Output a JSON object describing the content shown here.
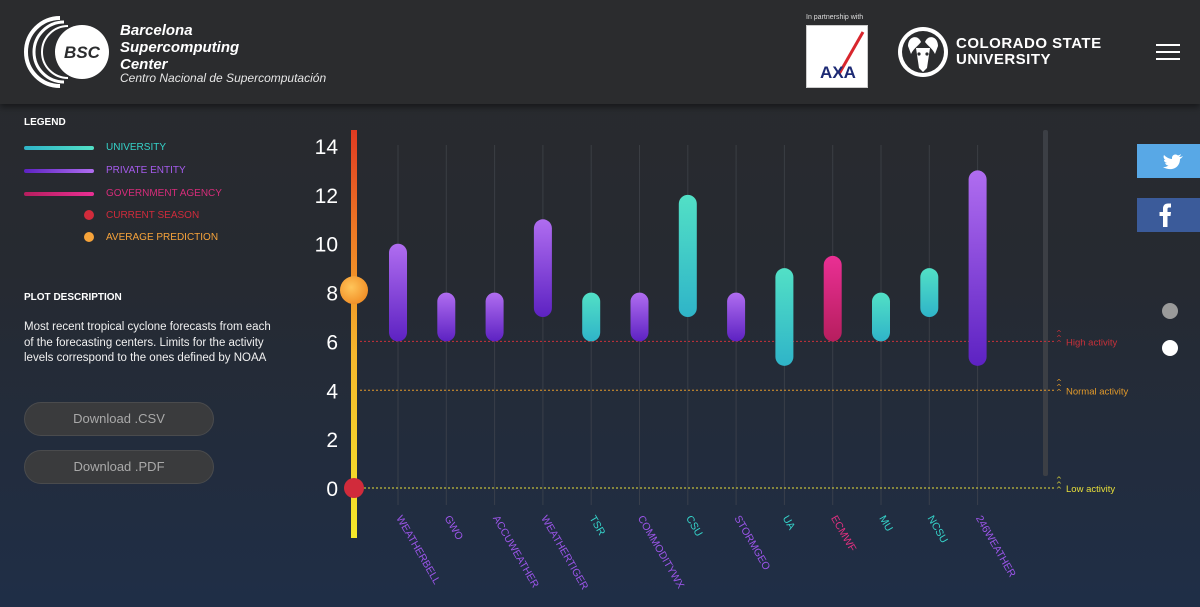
{
  "header": {
    "bsc_name_lines": [
      "Barcelona",
      "Supercomputing",
      "Center"
    ],
    "bsc_subtitle": "Centro Nacional de Supercomputación",
    "bsc_logo_text": "BSC",
    "partnership_label": "In partnership with",
    "partner_logo_text": "AXA",
    "csu_lines": [
      "COLORADO STATE",
      "UNIVERSITY"
    ]
  },
  "legend": {
    "title": "LEGEND",
    "items": [
      {
        "label": "UNIVERSITY",
        "kind": "line",
        "color": "#35d2c9",
        "gradient": [
          "#2fb4c8",
          "#52e0c6"
        ]
      },
      {
        "label": "PRIVATE ENTITY",
        "kind": "line",
        "color": "#a55bec",
        "gradient": [
          "#5d22c2",
          "#b06df0"
        ]
      },
      {
        "label": "GOVERNMENT AGENCY",
        "kind": "line",
        "color": "#d62c7a",
        "gradient": [
          "#b61e5e",
          "#ea2f94"
        ]
      },
      {
        "label": "CURRENT SEASON",
        "kind": "dot",
        "color": "#d12b3b"
      },
      {
        "label": "AVERAGE PREDICTION",
        "kind": "dot",
        "color": "#f6a33a"
      }
    ]
  },
  "plot_description": {
    "title": "PLOT DESCRIPTION",
    "text": "Most recent tropical cyclone forecasts from each of the forecasting centers. Limits for the activity levels correspond to the ones defined by NOAA"
  },
  "buttons": {
    "download_csv": "Download .CSV",
    "download_pdf": "Download .PDF"
  },
  "chart_data": {
    "type": "bar",
    "subtype": "range",
    "title": "",
    "xlabel": "",
    "ylabel": "",
    "ylim": [
      0,
      14
    ],
    "yticks": [
      0,
      2,
      4,
      6,
      8,
      10,
      12,
      14
    ],
    "categories": [
      "WEATHERBELL",
      "GWO",
      "ACCUWEATHER",
      "WEATHERTIGER",
      "TSR",
      "COMMODITYWX",
      "CSU",
      "STORMGEO",
      "UA",
      "ECMWF",
      "MU",
      "NCSU",
      "246WEATHER"
    ],
    "series": [
      {
        "ranges": [
          [
            6,
            10
          ],
          [
            6,
            8
          ],
          [
            6,
            8
          ],
          [
            7,
            11
          ],
          [
            6,
            8
          ],
          [
            6,
            8
          ],
          [
            7,
            12
          ],
          [
            6,
            8
          ],
          [
            5,
            9
          ],
          [
            6,
            9.5
          ],
          [
            6,
            8
          ],
          [
            7,
            9
          ],
          [
            5,
            13
          ]
        ],
        "entity_types": [
          "private",
          "private",
          "private",
          "private",
          "university",
          "private",
          "university",
          "private",
          "university",
          "government",
          "university",
          "university",
          "private"
        ]
      }
    ],
    "current_season": 0,
    "average_prediction": 8.1,
    "thresholds": [
      {
        "label": "High activity",
        "value": 6,
        "color": "#c8313a"
      },
      {
        "label": "Normal activity",
        "value": 4,
        "color": "#e39a2a"
      },
      {
        "label": "Low activity",
        "value": 0,
        "color": "#e8df3a"
      }
    ],
    "entity_colors": {
      "university": {
        "label_color": "#35d2c9",
        "gradient": [
          "#2fb4c8",
          "#52e0c6"
        ]
      },
      "private": {
        "label_color": "#9b55e8",
        "gradient": [
          "#5d22c2",
          "#b06df0"
        ]
      },
      "government": {
        "label_color": "#e0307f",
        "gradient": [
          "#b61e5e",
          "#ea2f94"
        ]
      }
    },
    "grid": true
  },
  "social": {
    "twitter_icon": "twitter-icon",
    "facebook_icon": "facebook-icon"
  }
}
